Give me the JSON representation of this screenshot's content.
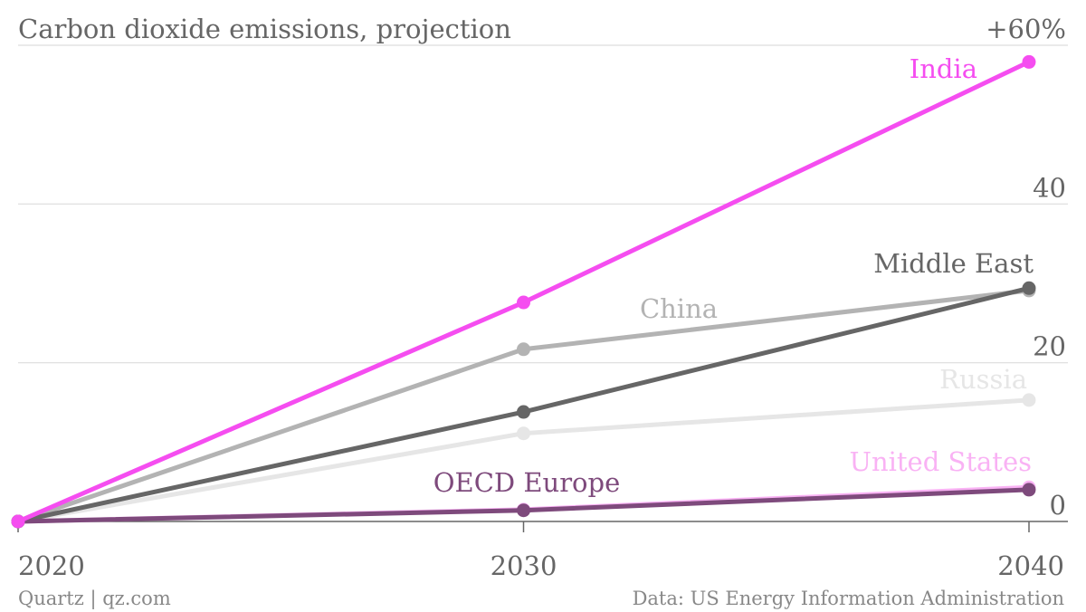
{
  "chart_data": {
    "type": "line",
    "title": "Carbon dioxide emissions, projection",
    "x": [
      "2020",
      "2030",
      "2040"
    ],
    "y_ticks": [
      "0",
      "20",
      "40",
      "+60%"
    ],
    "y_tick_values": [
      0,
      20,
      40,
      60
    ],
    "ylim": [
      0,
      60
    ],
    "grid": true,
    "legend": "inline labels",
    "series": [
      {
        "name": "Russia",
        "color": "#e6e6e6",
        "values": [
          0,
          11.1,
          15.3
        ]
      },
      {
        "name": "United States",
        "color": "#f9b2f4",
        "values": [
          0,
          1.5,
          4.3
        ]
      },
      {
        "name": "China",
        "color": "#b3b3b3",
        "values": [
          0,
          21.7,
          29.1
        ]
      },
      {
        "name": "Middle East",
        "color": "#666666",
        "values": [
          0,
          13.8,
          29.4
        ]
      },
      {
        "name": "OECD Europe",
        "color": "#7e4a7c",
        "values": [
          0,
          1.4,
          4.0
        ]
      },
      {
        "name": "India",
        "color": "#f54df0",
        "values": [
          0,
          27.6,
          57.9
        ]
      }
    ]
  },
  "footer": {
    "source_left": "Quartz | qz.com",
    "source_right": "Data: US Energy Information Administration"
  }
}
